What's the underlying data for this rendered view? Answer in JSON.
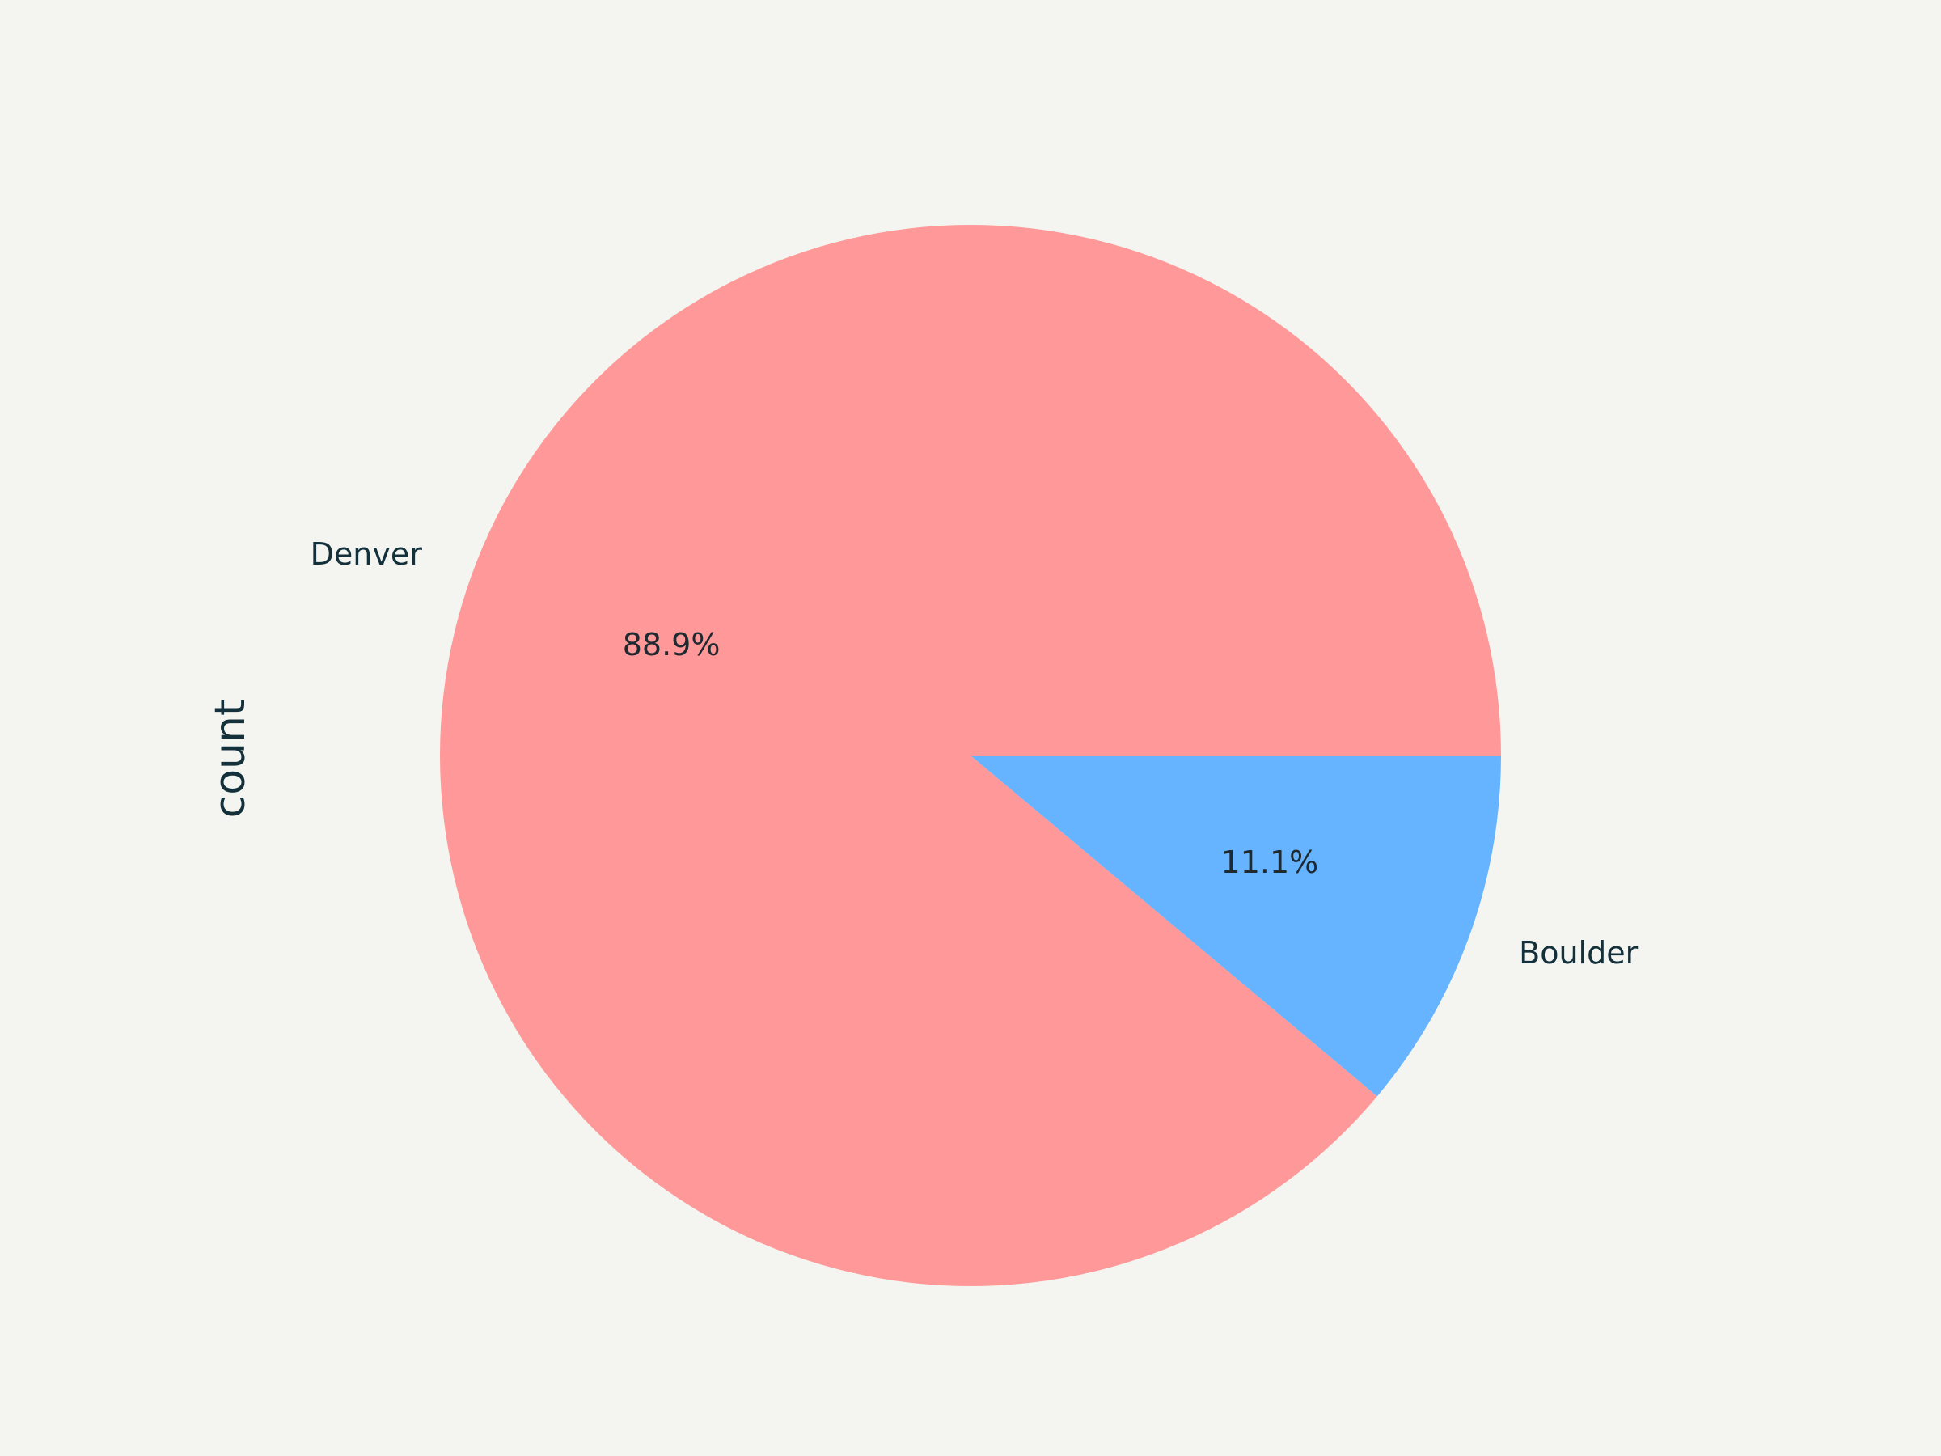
{
  "chart_data": {
    "type": "pie",
    "ylabel": "count",
    "slices": [
      {
        "label": "Denver",
        "percent": 88.9,
        "pct_label": "88.9%",
        "color": "#ff9999"
      },
      {
        "label": "Boulder",
        "percent": 11.1,
        "pct_label": "11.1%",
        "color": "#66b3ff"
      }
    ],
    "background": "#f4f5f0"
  }
}
